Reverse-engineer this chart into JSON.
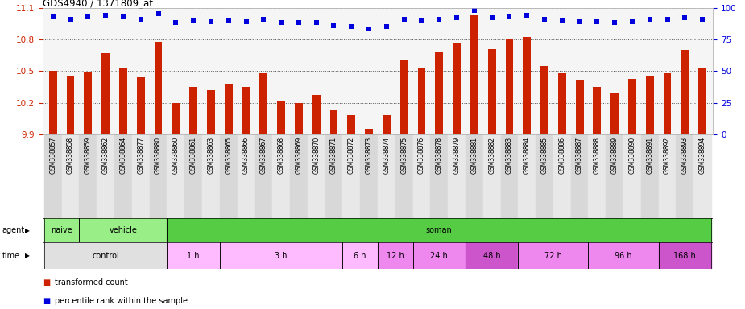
{
  "title": "GDS4940 / 1371809_at",
  "samples": [
    "GSM338857",
    "GSM338858",
    "GSM338859",
    "GSM338862",
    "GSM338864",
    "GSM338877",
    "GSM338880",
    "GSM338860",
    "GSM338861",
    "GSM338863",
    "GSM338865",
    "GSM338866",
    "GSM338867",
    "GSM338868",
    "GSM338869",
    "GSM338870",
    "GSM338871",
    "GSM338872",
    "GSM338873",
    "GSM338874",
    "GSM338875",
    "GSM338876",
    "GSM338878",
    "GSM338879",
    "GSM338881",
    "GSM338882",
    "GSM338883",
    "GSM338884",
    "GSM338885",
    "GSM338886",
    "GSM338887",
    "GSM338888",
    "GSM338889",
    "GSM338890",
    "GSM338891",
    "GSM338892",
    "GSM338893",
    "GSM338894"
  ],
  "bar_values": [
    10.5,
    10.46,
    10.49,
    10.67,
    10.53,
    10.44,
    10.78,
    10.2,
    10.35,
    10.32,
    10.37,
    10.35,
    10.48,
    10.22,
    10.2,
    10.27,
    10.13,
    10.08,
    9.95,
    10.08,
    10.6,
    10.53,
    10.68,
    10.76,
    11.03,
    10.71,
    10.8,
    10.82,
    10.55,
    10.48,
    10.41,
    10.35,
    10.3,
    10.43,
    10.46,
    10.48,
    10.7,
    10.53
  ],
  "percentile_values": [
    93,
    91,
    93,
    94,
    93,
    91,
    95,
    88,
    90,
    89,
    90,
    89,
    91,
    88,
    88,
    88,
    86,
    85,
    83,
    85,
    91,
    90,
    91,
    92,
    98,
    92,
    93,
    94,
    91,
    90,
    89,
    89,
    88,
    89,
    91,
    91,
    92,
    91
  ],
  "ylim_left": [
    9.9,
    11.1
  ],
  "ylim_right": [
    0,
    100
  ],
  "yticks_left": [
    9.9,
    10.2,
    10.5,
    10.8,
    11.1
  ],
  "yticks_right": [
    0,
    25,
    50,
    75,
    100
  ],
  "bar_color": "#cc2200",
  "dot_color": "#0000dd",
  "chart_bg": "#f5f5f5",
  "agent_groups": [
    {
      "label": "naive",
      "start": 0,
      "end": 2,
      "color": "#99ee88"
    },
    {
      "label": "vehicle",
      "start": 2,
      "end": 7,
      "color": "#99ee88"
    },
    {
      "label": "soman",
      "start": 7,
      "end": 38,
      "color": "#55cc44"
    }
  ],
  "time_groups": [
    {
      "label": "control",
      "start": 0,
      "end": 7,
      "color": "#e0e0e0"
    },
    {
      "label": "1 h",
      "start": 7,
      "end": 10,
      "color": "#ffbbff"
    },
    {
      "label": "3 h",
      "start": 10,
      "end": 17,
      "color": "#ffbbff"
    },
    {
      "label": "6 h",
      "start": 17,
      "end": 19,
      "color": "#ffbbff"
    },
    {
      "label": "12 h",
      "start": 19,
      "end": 21,
      "color": "#ee88ee"
    },
    {
      "label": "24 h",
      "start": 21,
      "end": 24,
      "color": "#ee88ee"
    },
    {
      "label": "48 h",
      "start": 24,
      "end": 27,
      "color": "#cc55cc"
    },
    {
      "label": "72 h",
      "start": 27,
      "end": 31,
      "color": "#ee88ee"
    },
    {
      "label": "96 h",
      "start": 31,
      "end": 35,
      "color": "#ee88ee"
    },
    {
      "label": "168 h",
      "start": 35,
      "end": 38,
      "color": "#cc55cc"
    }
  ]
}
